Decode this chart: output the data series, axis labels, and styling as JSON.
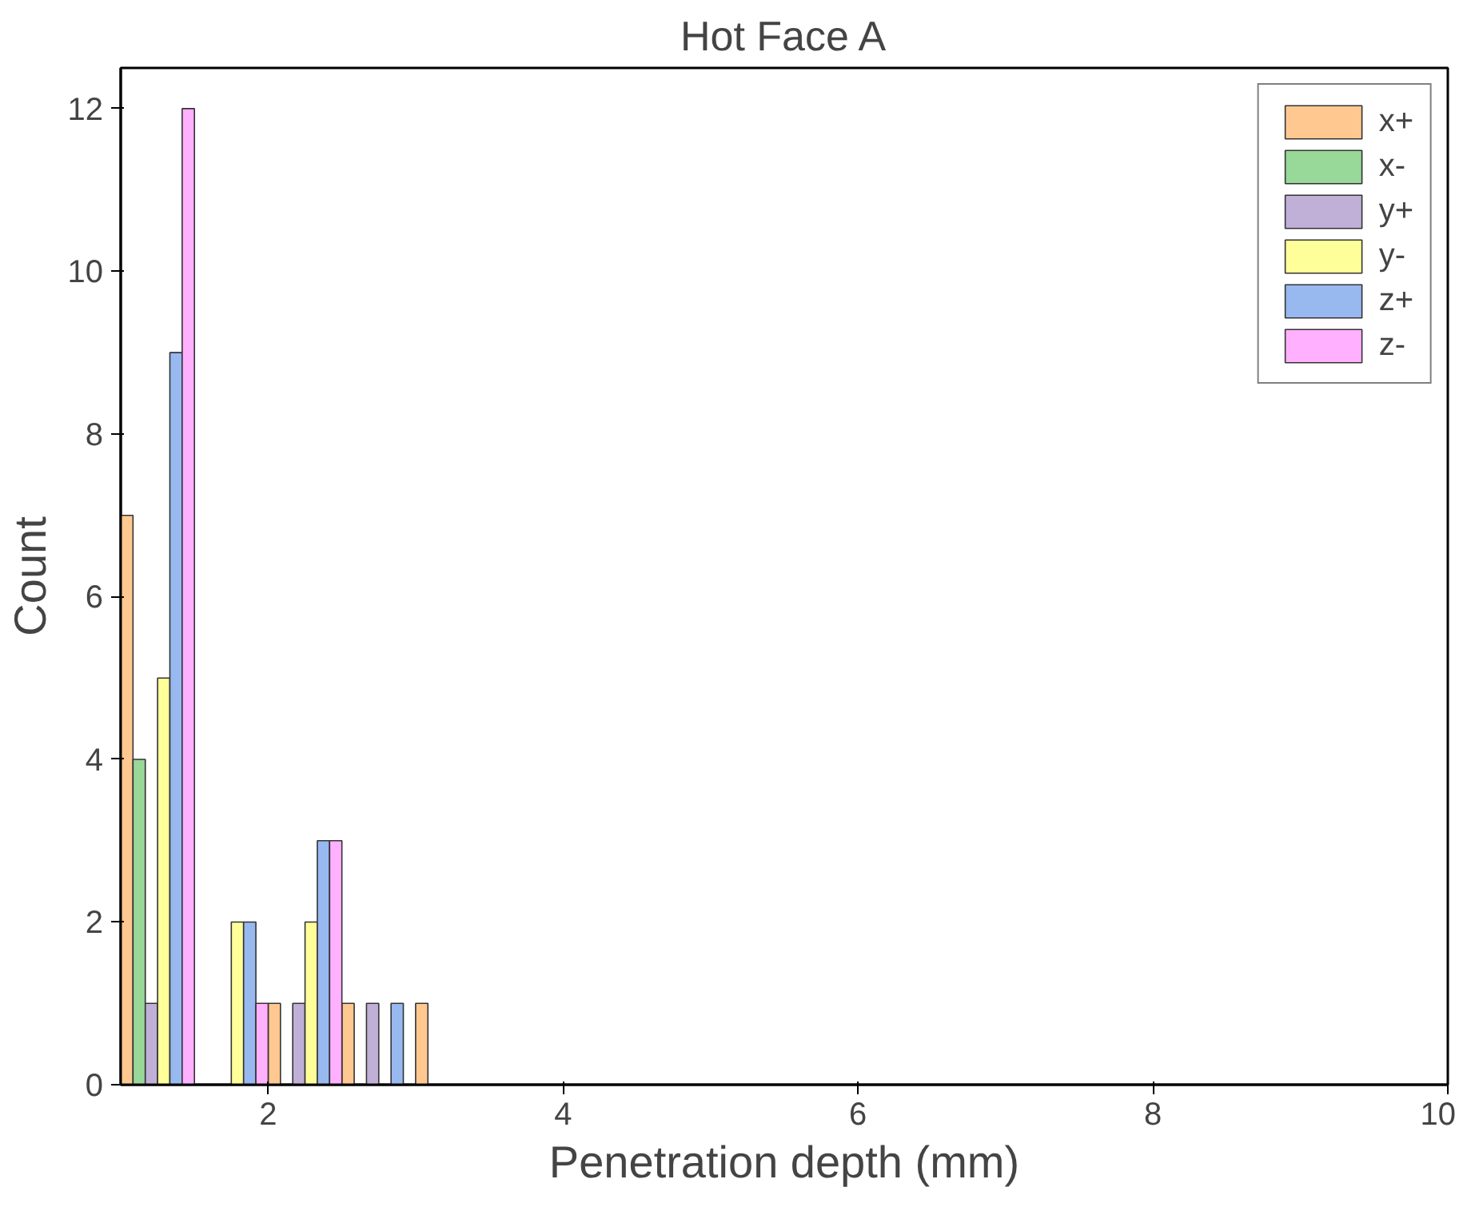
{
  "chart_data": {
    "type": "histogram",
    "title": "Hot Face A",
    "xlabel": "Penetration depth (mm)",
    "ylabel": "Count",
    "bins": [
      1,
      1.5,
      2,
      2.5,
      3,
      3.5
    ],
    "series": [
      {
        "name": "x+",
        "color": "#ffc890",
        "values": [
          7,
          0,
          1,
          1,
          1
        ]
      },
      {
        "name": "x-",
        "color": "#98d898",
        "values": [
          4,
          0,
          0,
          0,
          0
        ]
      },
      {
        "name": "y+",
        "color": "#c0b0d8",
        "values": [
          1,
          0,
          1,
          1,
          0
        ]
      },
      {
        "name": "y-",
        "color": "#ffff99",
        "values": [
          5,
          2,
          2,
          0,
          0
        ]
      },
      {
        "name": "z+",
        "color": "#98b8f0",
        "values": [
          9,
          2,
          3,
          1,
          0
        ]
      },
      {
        "name": "z-",
        "color": "#ffb0ff",
        "values": [
          12,
          1,
          3,
          0,
          0
        ]
      }
    ],
    "xlim": [
      1,
      10
    ],
    "ylim": [
      0,
      12.5
    ],
    "xticks": [
      2,
      4,
      6,
      8,
      10
    ],
    "yticks": [
      0,
      2,
      4,
      6,
      8,
      10,
      12
    ],
    "grid": false,
    "legend": "top right"
  }
}
